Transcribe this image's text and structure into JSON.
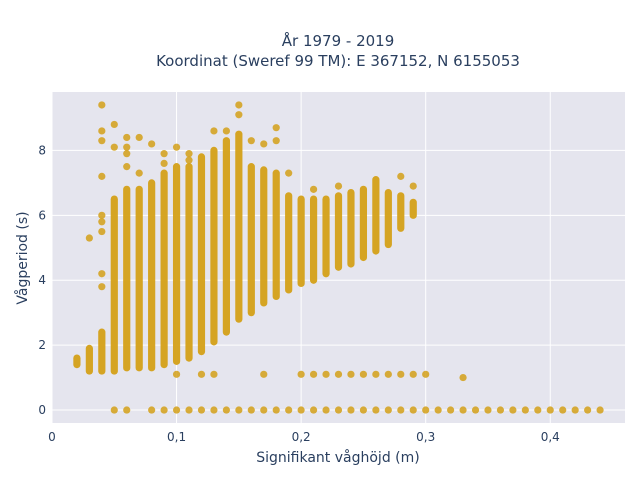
{
  "chart_data": {
    "type": "scatter",
    "title_line1": "År 1979 - 2019",
    "title_line2": "Koordinat (Sweref 99 TM): E 367152, N 6155053",
    "xlabel": "Signifikant våghöjd (m)",
    "ylabel": "Vågperiod (s)",
    "xlim": [
      0,
      0.46
    ],
    "ylim": [
      -0.4,
      9.8
    ],
    "xticks": [
      0,
      0.1,
      0.2,
      0.3,
      0.4
    ],
    "xtick_labels": [
      "0",
      "0,1",
      "0,2",
      "0,3",
      "0,4"
    ],
    "yticks": [
      0,
      2,
      4,
      6,
      8
    ],
    "ytick_labels": [
      "0",
      "2",
      "4",
      "6",
      "8"
    ],
    "grid": true,
    "marker_color": "#d4a017",
    "plot_bg": "#e5e5ee",
    "columns": [
      {
        "x": 0.02,
        "ymin": 1.4,
        "ymax": 1.6,
        "outliers": []
      },
      {
        "x": 0.03,
        "ymin": 1.2,
        "ymax": 1.9,
        "outliers": [
          5.3
        ]
      },
      {
        "x": 0.04,
        "ymin": 1.2,
        "ymax": 2.4,
        "outliers": [
          3.8,
          4.2,
          5.5,
          5.8,
          6.0,
          7.2,
          8.3,
          8.6,
          9.4
        ]
      },
      {
        "x": 0.05,
        "ymin": 1.2,
        "ymax": 6.5,
        "outliers": [
          8.1,
          8.8,
          0.0
        ]
      },
      {
        "x": 0.06,
        "ymin": 1.3,
        "ymax": 6.8,
        "outliers": [
          7.5,
          7.9,
          8.1,
          8.4,
          0.0
        ]
      },
      {
        "x": 0.07,
        "ymin": 1.3,
        "ymax": 6.8,
        "outliers": [
          7.3,
          8.4
        ]
      },
      {
        "x": 0.08,
        "ymin": 1.3,
        "ymax": 7.0,
        "outliers": [
          8.2,
          0.0
        ]
      },
      {
        "x": 0.09,
        "ymin": 1.4,
        "ymax": 7.3,
        "outliers": [
          7.6,
          7.9,
          0.0
        ]
      },
      {
        "x": 0.1,
        "ymin": 1.5,
        "ymax": 7.5,
        "outliers": [
          8.1,
          1.1,
          0.0
        ]
      },
      {
        "x": 0.11,
        "ymin": 1.6,
        "ymax": 7.5,
        "outliers": [
          7.7,
          7.9,
          0.0
        ]
      },
      {
        "x": 0.12,
        "ymin": 1.8,
        "ymax": 7.8,
        "outliers": [
          1.1,
          0.0
        ]
      },
      {
        "x": 0.13,
        "ymin": 2.1,
        "ymax": 8.0,
        "outliers": [
          8.6,
          1.1,
          0.0
        ]
      },
      {
        "x": 0.14,
        "ymin": 2.4,
        "ymax": 8.3,
        "outliers": [
          8.6,
          0.0
        ]
      },
      {
        "x": 0.15,
        "ymin": 2.8,
        "ymax": 8.5,
        "outliers": [
          9.1,
          9.4,
          0.0
        ]
      },
      {
        "x": 0.16,
        "ymin": 3.0,
        "ymax": 7.5,
        "outliers": [
          8.3,
          0.0
        ]
      },
      {
        "x": 0.17,
        "ymin": 3.3,
        "ymax": 7.4,
        "outliers": [
          8.2,
          1.1,
          0.0
        ]
      },
      {
        "x": 0.18,
        "ymin": 3.5,
        "ymax": 7.3,
        "outliers": [
          8.3,
          8.7,
          0.0
        ]
      },
      {
        "x": 0.19,
        "ymin": 3.7,
        "ymax": 6.6,
        "outliers": [
          7.3,
          0.0
        ]
      },
      {
        "x": 0.2,
        "ymin": 3.9,
        "ymax": 6.5,
        "outliers": [
          1.1,
          0.0
        ]
      },
      {
        "x": 0.21,
        "ymin": 4.0,
        "ymax": 6.5,
        "outliers": [
          6.8,
          1.1,
          0.0
        ]
      },
      {
        "x": 0.22,
        "ymin": 4.2,
        "ymax": 6.5,
        "outliers": [
          1.1,
          0.0
        ]
      },
      {
        "x": 0.23,
        "ymin": 4.4,
        "ymax": 6.6,
        "outliers": [
          6.9,
          1.1,
          0.0
        ]
      },
      {
        "x": 0.24,
        "ymin": 4.5,
        "ymax": 6.7,
        "outliers": [
          1.1,
          0.0
        ]
      },
      {
        "x": 0.25,
        "ymin": 4.7,
        "ymax": 6.8,
        "outliers": [
          1.1,
          0.0
        ]
      },
      {
        "x": 0.26,
        "ymin": 4.9,
        "ymax": 7.1,
        "outliers": [
          1.1,
          0.0
        ]
      },
      {
        "x": 0.27,
        "ymin": 5.1,
        "ymax": 6.7,
        "outliers": [
          1.1,
          0.0
        ]
      },
      {
        "x": 0.28,
        "ymin": 5.6,
        "ymax": 6.6,
        "outliers": [
          7.2,
          1.1,
          0.0
        ]
      },
      {
        "x": 0.29,
        "ymin": 6.0,
        "ymax": 6.4,
        "outliers": [
          6.9,
          1.1,
          0.0
        ]
      },
      {
        "x": 0.3,
        "ymin": null,
        "ymax": null,
        "outliers": [
          1.1,
          0.0
        ]
      },
      {
        "x": 0.31,
        "ymin": null,
        "ymax": null,
        "outliers": [
          0.0
        ]
      },
      {
        "x": 0.32,
        "ymin": null,
        "ymax": null,
        "outliers": [
          0.0
        ]
      },
      {
        "x": 0.33,
        "ymin": null,
        "ymax": null,
        "outliers": [
          1.0,
          0.0
        ]
      },
      {
        "x": 0.34,
        "ymin": null,
        "ymax": null,
        "outliers": [
          0.0
        ]
      },
      {
        "x": 0.35,
        "ymin": null,
        "ymax": null,
        "outliers": [
          0.0
        ]
      },
      {
        "x": 0.36,
        "ymin": null,
        "ymax": null,
        "outliers": [
          0.0
        ]
      },
      {
        "x": 0.37,
        "ymin": null,
        "ymax": null,
        "outliers": [
          0.0
        ]
      },
      {
        "x": 0.38,
        "ymin": null,
        "ymax": null,
        "outliers": [
          0.0
        ]
      },
      {
        "x": 0.39,
        "ymin": null,
        "ymax": null,
        "outliers": [
          0.0
        ]
      },
      {
        "x": 0.4,
        "ymin": null,
        "ymax": null,
        "outliers": [
          0.0
        ]
      },
      {
        "x": 0.41,
        "ymin": null,
        "ymax": null,
        "outliers": [
          0.0
        ]
      },
      {
        "x": 0.42,
        "ymin": null,
        "ymax": null,
        "outliers": [
          0.0
        ]
      },
      {
        "x": 0.43,
        "ymin": null,
        "ymax": null,
        "outliers": [
          0.0
        ]
      },
      {
        "x": 0.44,
        "ymin": null,
        "ymax": null,
        "outliers": [
          0.0
        ]
      }
    ]
  }
}
